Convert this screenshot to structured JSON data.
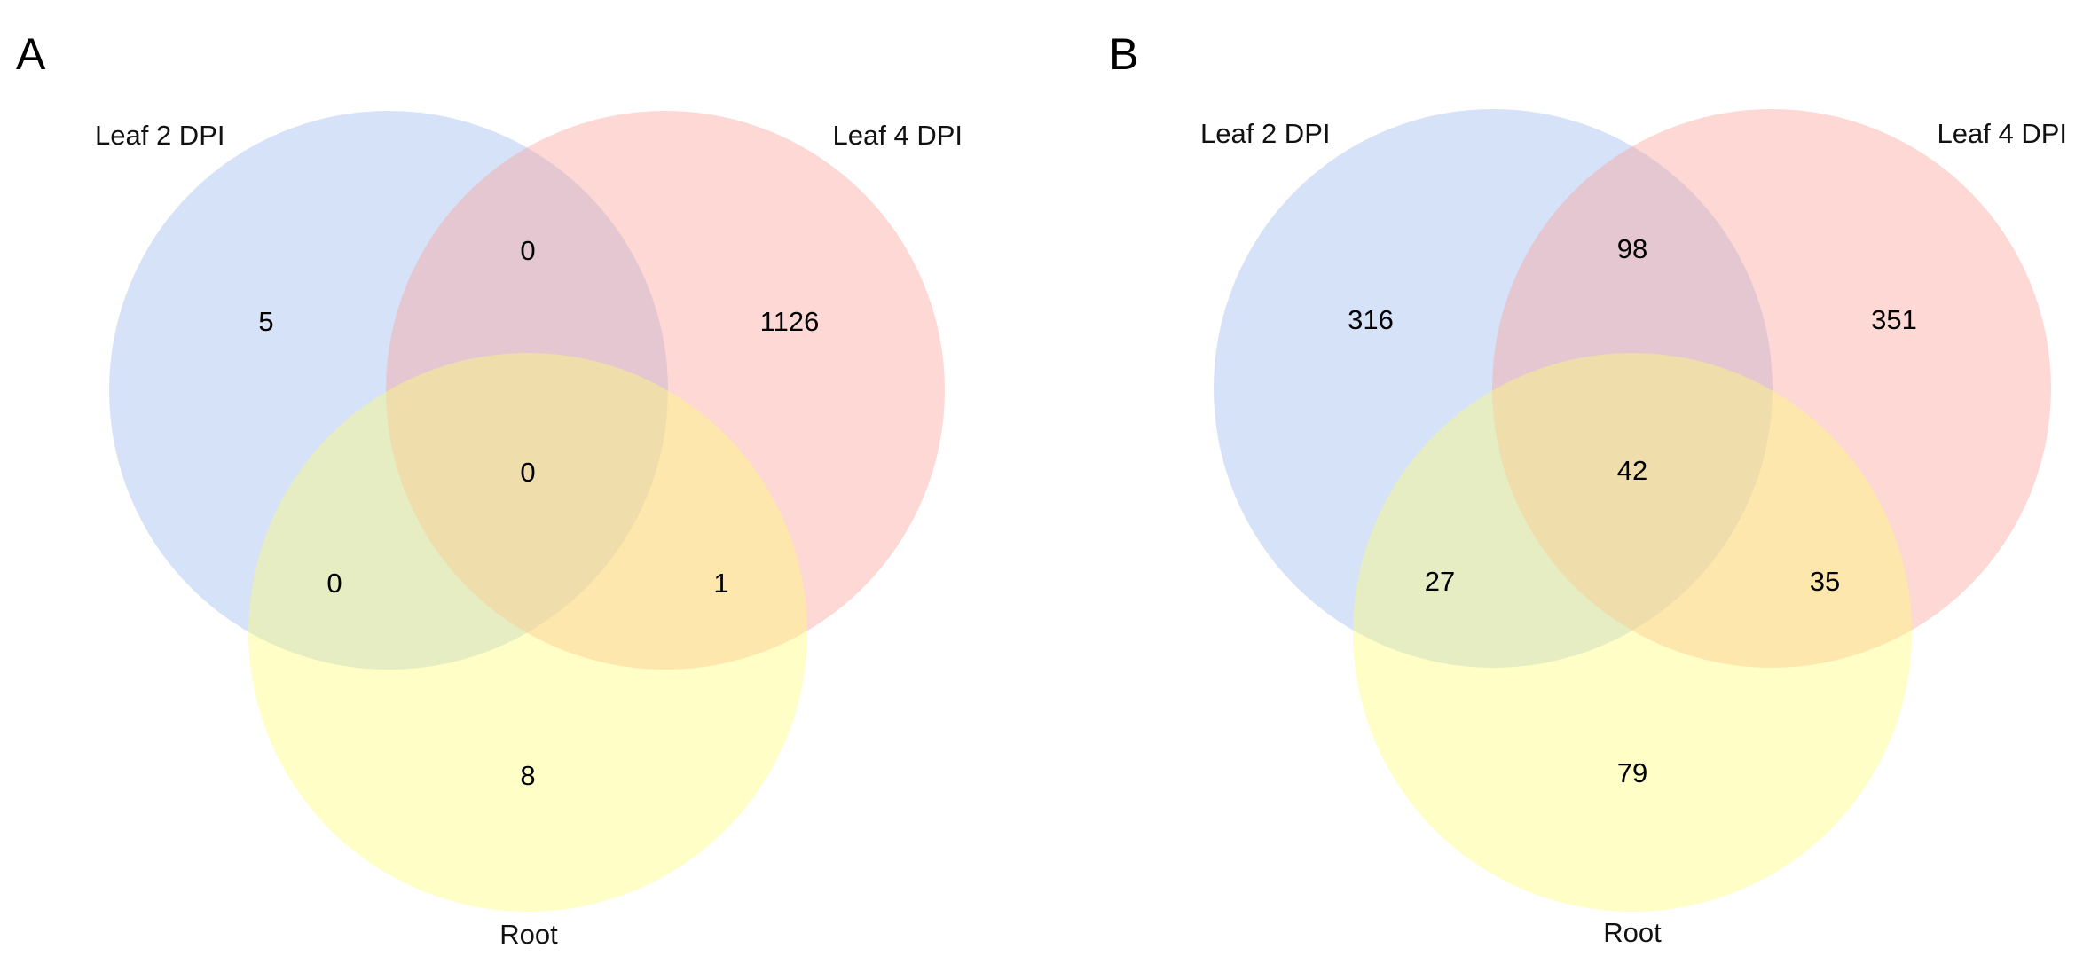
{
  "colors": {
    "leaf2": "#9db9ee",
    "leaf4": "#fba39a",
    "root": "#fdfd76",
    "opacity": 0.42
  },
  "panels": [
    {
      "letter": "A",
      "sets": {
        "leaf2": "Leaf 2 DPI",
        "leaf4": "Leaf 4 DPI",
        "root": "Root"
      },
      "counts": {
        "leaf2_only": "5",
        "leaf4_only": "1126",
        "root_only": "8",
        "leaf2_leaf4": "0",
        "leaf2_root": "0",
        "leaf4_root": "1",
        "all": "0"
      }
    },
    {
      "letter": "B",
      "sets": {
        "leaf2": "Leaf 2 DPI",
        "leaf4": "Leaf 4 DPI",
        "root": "Root"
      },
      "counts": {
        "leaf2_only": "316",
        "leaf4_only": "351",
        "root_only": "79",
        "leaf2_leaf4": "98",
        "leaf2_root": "27",
        "leaf4_root": "35",
        "all": "42"
      }
    }
  ]
}
